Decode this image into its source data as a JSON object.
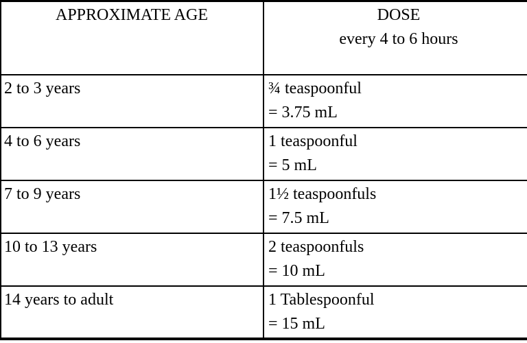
{
  "table": {
    "columns": [
      {
        "title": "APPROXIMATE AGE",
        "subtitle": ""
      },
      {
        "title": "DOSE",
        "subtitle": "every 4 to 6 hours"
      }
    ],
    "rows": [
      {
        "age": "2 to 3 years",
        "dose": "¾ teaspoonful",
        "equivalent": "= 3.75 mL"
      },
      {
        "age": "4 to 6 years",
        "dose": "1 teaspoonful",
        "equivalent": "= 5 mL"
      },
      {
        "age": "7 to 9 years",
        "dose": "1½ teaspoonfuls",
        "equivalent": "= 7.5 mL"
      },
      {
        "age": "10 to 13 years",
        "dose": "2 teaspoonfuls",
        "equivalent": "= 10 mL"
      },
      {
        "age": "14 years to adult",
        "dose": "1 Tablespoonful",
        "equivalent": "= 15 mL"
      }
    ],
    "colors": {
      "border": "#000000",
      "text": "#000000",
      "background": "#ffffff"
    }
  }
}
